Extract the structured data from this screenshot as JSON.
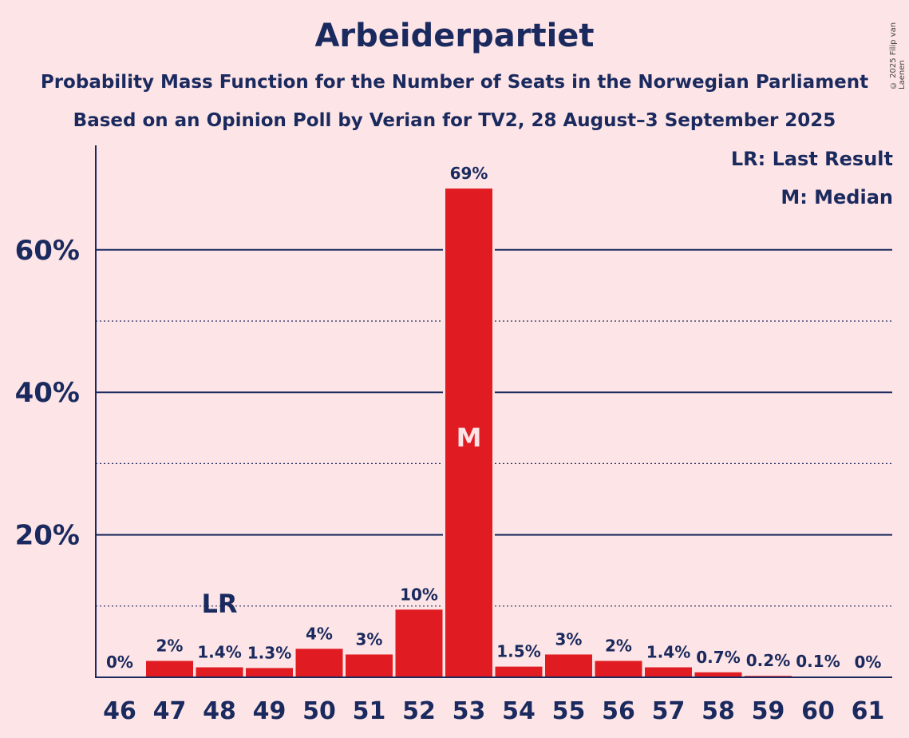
{
  "chart_data": {
    "type": "bar",
    "title": "Arbeiderpartiet",
    "subtitle": "Probability Mass Function for the Number of Seats in the Norwegian Parliament",
    "subtitle2": "Based on an Opinion Poll by Verian for TV2, 28 August–3 September 2025",
    "copyright": "© 2025 Filip van Laenen",
    "legend": {
      "lr": "LR: Last Result",
      "m": "M: Median",
      "placement": "top-right"
    },
    "categories": [
      "46",
      "47",
      "48",
      "49",
      "50",
      "51",
      "52",
      "53",
      "54",
      "55",
      "56",
      "57",
      "58",
      "59",
      "60",
      "61"
    ],
    "values": [
      0,
      2.3,
      1.4,
      1.3,
      4.0,
      3.2,
      9.5,
      68.6,
      1.5,
      3.2,
      2.3,
      1.4,
      0.7,
      0.2,
      0.1,
      0
    ],
    "data_labels": [
      "0%",
      "2%",
      "1.4%",
      "1.3%",
      "4%",
      "3%",
      "10%",
      "69%",
      "1.5%",
      "3%",
      "2%",
      "1.4%",
      "0.7%",
      "0.2%",
      "0.1%",
      "0%"
    ],
    "yticks": [
      {
        "value": 20,
        "label": "20%"
      },
      {
        "value": 40,
        "label": "40%"
      },
      {
        "value": 60,
        "label": "60%"
      }
    ],
    "minor_gridlines": [
      10,
      30,
      50
    ],
    "ylim": [
      0,
      75
    ],
    "last_result": {
      "category": "48",
      "label": "LR"
    },
    "median": {
      "category": "53",
      "label": "M"
    },
    "colors": {
      "bar": "#e01b22",
      "axis": "#1a2a5e",
      "background": "#fde4e6",
      "median_text": "#fde4e6"
    },
    "grid": true
  }
}
